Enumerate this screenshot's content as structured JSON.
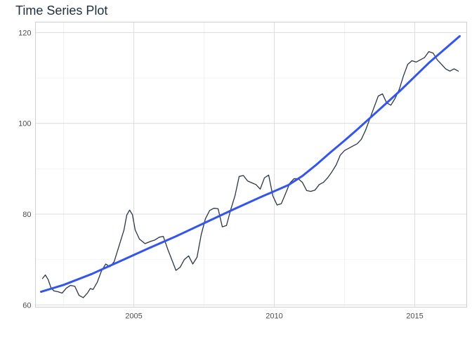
{
  "chart_data": {
    "type": "line",
    "title": "Time Series Plot",
    "xlabel": "",
    "ylabel": "",
    "xlim": [
      2001.5,
      2016.85
    ],
    "ylim": [
      59.5,
      122.3
    ],
    "x_ticks": [
      2005,
      2010,
      2015
    ],
    "y_ticks": [
      60,
      80,
      100,
      120
    ],
    "x_tick_labels": [
      "2005",
      "2010",
      "2015"
    ],
    "y_tick_labels": [
      "60",
      "80",
      "100",
      "120"
    ],
    "grid": true,
    "legend": "none",
    "series": [
      {
        "role": "observed",
        "color": "#2b3544",
        "x": [
          2001.75,
          2001.85,
          2001.95,
          2002.05,
          2002.15,
          2002.3,
          2002.45,
          2002.6,
          2002.75,
          2002.9,
          2003.05,
          2003.2,
          2003.35,
          2003.45,
          2003.55,
          2003.7,
          2003.85,
          2004.0,
          2004.15,
          2004.3,
          2004.45,
          2004.55,
          2004.65,
          2004.75,
          2004.85,
          2004.95,
          2005.05,
          2005.2,
          2005.4,
          2005.6,
          2005.75,
          2005.9,
          2006.05,
          2006.2,
          2006.35,
          2006.5,
          2006.65,
          2006.8,
          2006.95,
          2007.1,
          2007.25,
          2007.4,
          2007.55,
          2007.7,
          2007.85,
          2008.0,
          2008.15,
          2008.3,
          2008.45,
          2008.6,
          2008.75,
          2008.9,
          2009.05,
          2009.2,
          2009.35,
          2009.5,
          2009.65,
          2009.8,
          2009.95,
          2010.1,
          2010.25,
          2010.4,
          2010.55,
          2010.7,
          2010.85,
          2011.0,
          2011.15,
          2011.3,
          2011.45,
          2011.6,
          2011.75,
          2011.9,
          2012.05,
          2012.2,
          2012.35,
          2012.5,
          2012.65,
          2012.8,
          2012.95,
          2013.1,
          2013.25,
          2013.4,
          2013.55,
          2013.7,
          2013.85,
          2014.0,
          2014.15,
          2014.3,
          2014.45,
          2014.6,
          2014.75,
          2014.9,
          2015.05,
          2015.2,
          2015.35,
          2015.5,
          2015.65,
          2015.8,
          2015.95,
          2016.1,
          2016.25,
          2016.4,
          2016.55
        ],
        "y": [
          65.8,
          66.6,
          65.6,
          63.8,
          63.1,
          62.9,
          62.6,
          63.7,
          64.3,
          64.1,
          62.1,
          61.6,
          62.6,
          63.6,
          63.4,
          65.0,
          67.5,
          69.0,
          68.4,
          69.5,
          72.5,
          74.5,
          76.5,
          79.8,
          80.9,
          79.9,
          76.5,
          74.5,
          73.5,
          74.0,
          74.3,
          74.9,
          75.1,
          72.4,
          70.0,
          67.6,
          68.3,
          70.0,
          70.8,
          69.0,
          70.5,
          75.5,
          79.0,
          80.8,
          81.3,
          81.2,
          77.2,
          77.5,
          81.0,
          84.0,
          88.3,
          88.5,
          87.3,
          86.9,
          86.5,
          85.5,
          88.0,
          88.6,
          84.0,
          82.0,
          82.3,
          84.5,
          86.8,
          87.8,
          87.8,
          87.0,
          85.2,
          85.0,
          85.3,
          86.5,
          87.0,
          88.0,
          89.3,
          90.8,
          93.0,
          94.0,
          94.5,
          95.0,
          95.5,
          96.5,
          98.5,
          101.0,
          103.5,
          106.0,
          106.5,
          104.5,
          104.0,
          105.5,
          107.5,
          110.5,
          113.0,
          113.8,
          113.5,
          114.0,
          114.5,
          115.8,
          115.5,
          114.0,
          113.0,
          112.0,
          111.5,
          112.0,
          111.5
        ]
      },
      {
        "role": "smooth-trend",
        "color": "#3355ee",
        "x": [
          2001.7,
          2002.5,
          2003.5,
          2004.5,
          2005.5,
          2006.5,
          2007.5,
          2008.5,
          2009.5,
          2010.5,
          2011.0,
          2011.5,
          2012.0,
          2012.5,
          2013.0,
          2013.5,
          2014.0,
          2014.5,
          2015.0,
          2015.5,
          2016.0,
          2016.6
        ],
        "y": [
          62.9,
          64.4,
          66.8,
          69.6,
          72.4,
          75.1,
          78.0,
          80.9,
          83.7,
          86.4,
          88.4,
          90.9,
          93.6,
          96.2,
          98.9,
          101.7,
          104.5,
          107.3,
          110.3,
          113.3,
          116.0,
          119.2
        ]
      }
    ]
  }
}
